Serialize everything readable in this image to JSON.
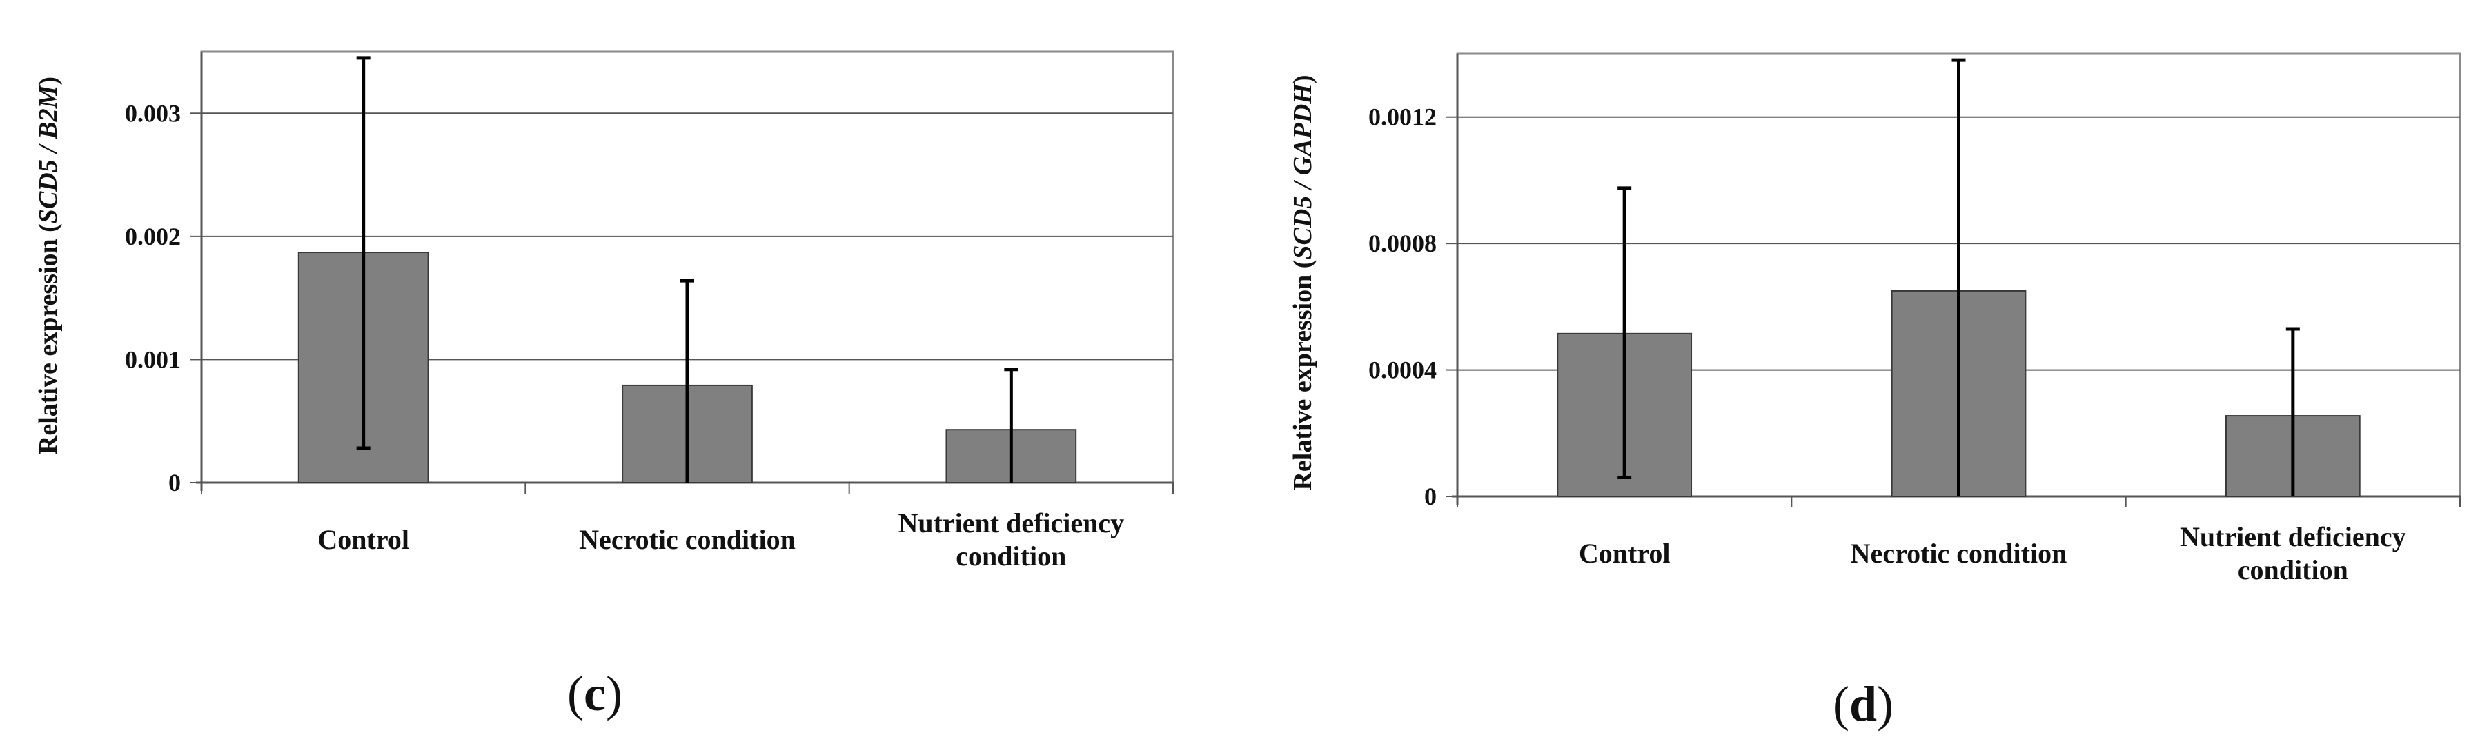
{
  "chart_data": [
    {
      "type": "bar",
      "panel_label": "c",
      "categories": [
        [
          "Control"
        ],
        [
          "Necrotic condition"
        ],
        [
          "Nutrient deficiency",
          "condition"
        ]
      ],
      "values": [
        0.00187,
        0.00079,
        0.00043
      ],
      "error_upper": [
        0.00345,
        0.00164,
        0.00092
      ],
      "error_lower": [
        0.00028,
        0.0,
        0.0
      ],
      "ylabel": {
        "prefix": "Relative expression (",
        "italic": "SCD5 / B2M",
        "suffix": ")"
      },
      "ylim": [
        0,
        0.0035
      ],
      "yticks": [
        0,
        0.001,
        0.002,
        0.003
      ],
      "ytick_labels": [
        "0",
        "0.001",
        "0.002",
        "0.003"
      ],
      "grid": true,
      "bar_color": "#808080"
    },
    {
      "type": "bar",
      "panel_label": "d",
      "categories": [
        [
          "Control"
        ],
        [
          "Necrotic condition"
        ],
        [
          "Nutrient deficiency",
          "condition"
        ]
      ],
      "values": [
        0.000515,
        0.00065,
        0.000255
      ],
      "error_upper": [
        0.000975,
        0.00138,
        0.00053
      ],
      "error_lower": [
        6e-05,
        0.0,
        0.0
      ],
      "ylabel": {
        "prefix": "Relative expression (",
        "italic": "SCD5 / GAPDH",
        "suffix": ")"
      },
      "ylim": [
        0,
        0.0014
      ],
      "yticks": [
        0,
        0.0004,
        0.0008,
        0.0012
      ],
      "ytick_labels": [
        "0",
        "0.0004",
        "0.0008",
        "0.0012"
      ],
      "grid": true,
      "bar_color": "#808080"
    }
  ]
}
